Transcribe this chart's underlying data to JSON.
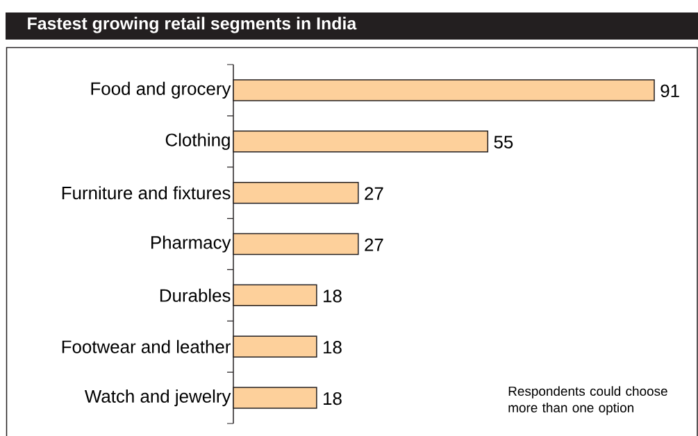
{
  "chart_data": {
    "type": "bar",
    "orientation": "horizontal",
    "title": "Fastest growing retail segments in India",
    "categories": [
      "Food and grocery",
      "Clothing",
      "Furniture and fixtures",
      "Pharmacy",
      "Durables",
      "Footwear and leather",
      "Watch and jewelry"
    ],
    "values": [
      91,
      55,
      27,
      27,
      18,
      18,
      18
    ],
    "color": "#fdd09b",
    "data_labels": true,
    "annotations": [
      "Respondents could choose more than one option"
    ]
  }
}
